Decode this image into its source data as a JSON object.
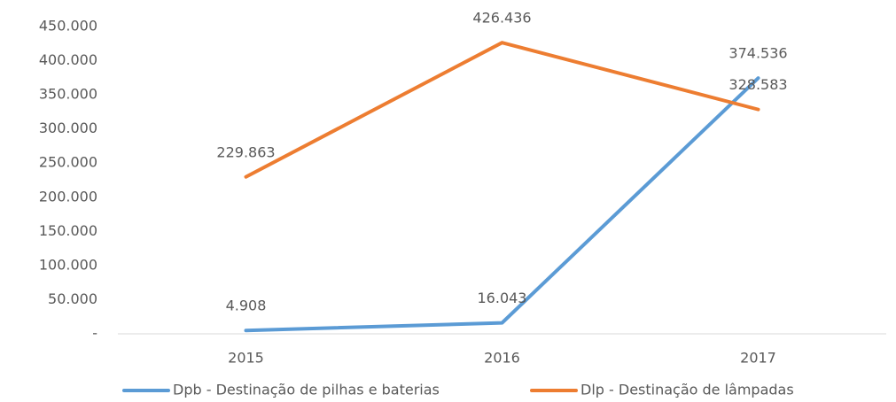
{
  "chart_data": {
    "type": "line",
    "categories": [
      "2015",
      "2016",
      "2017"
    ],
    "series": [
      {
        "name": "Dpb - Destinação de pilhas e baterias",
        "color": "#5b9bd5",
        "values": [
          4908,
          16043,
          374536
        ],
        "value_labels": [
          "4.908",
          "16.043",
          "374.536"
        ]
      },
      {
        "name": "Dlp - Destinação de lâmpadas",
        "color": "#ed7d31",
        "values": [
          229863,
          426436,
          328583
        ],
        "value_labels": [
          "229.863",
          "426.436",
          "328.583"
        ]
      }
    ],
    "ylim": [
      0,
      450000
    ],
    "yticks": [
      {
        "value": 0,
        "label": "-"
      },
      {
        "value": 50000,
        "label": "50.000"
      },
      {
        "value": 100000,
        "label": "100.000"
      },
      {
        "value": 150000,
        "label": "150.000"
      },
      {
        "value": 200000,
        "label": "200.000"
      },
      {
        "value": 250000,
        "label": "250.000"
      },
      {
        "value": 300000,
        "label": "300.000"
      },
      {
        "value": 350000,
        "label": "350.000"
      },
      {
        "value": 400000,
        "label": "400.000"
      },
      {
        "value": 450000,
        "label": "450.000"
      }
    ],
    "grid": false,
    "legend": "bottom"
  }
}
